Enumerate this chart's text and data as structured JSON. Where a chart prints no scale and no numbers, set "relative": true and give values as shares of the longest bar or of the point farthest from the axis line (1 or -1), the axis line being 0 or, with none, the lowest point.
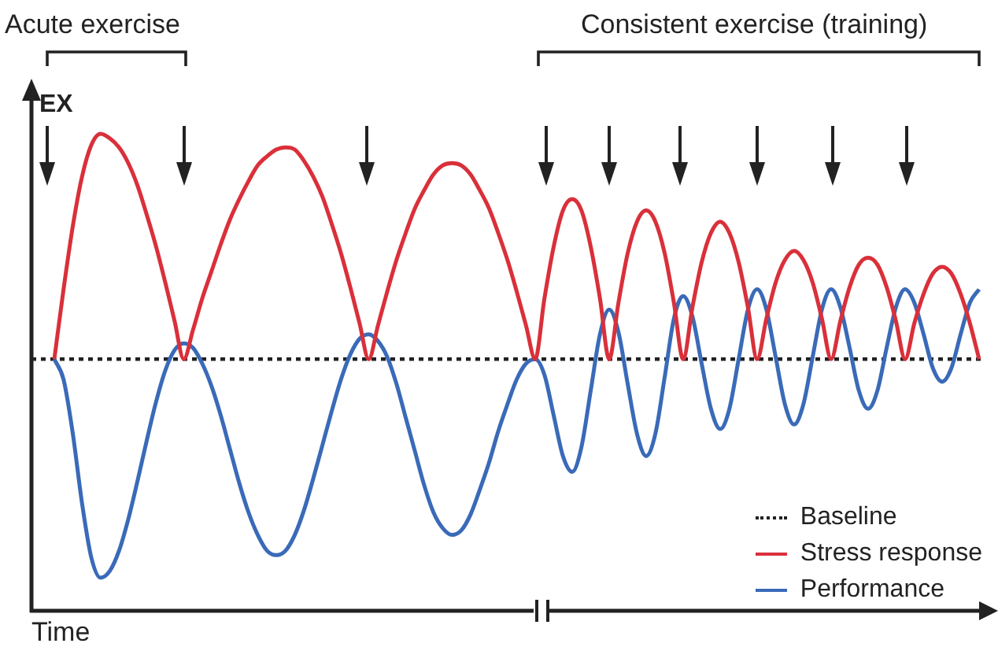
{
  "chart_data": {
    "type": "line",
    "relative": true,
    "xlabel": "Time",
    "ylabel": "EX",
    "annotations": [
      "Acute exercise",
      "Consistent exercise (training)"
    ],
    "categories": [
      null,
      null,
      null,
      null,
      null,
      null,
      null,
      null,
      null,
      null,
      null,
      null,
      null,
      null,
      null,
      null,
      null,
      null,
      null,
      null,
      null,
      null,
      null,
      null,
      null,
      null,
      null,
      null,
      null,
      null,
      null,
      null,
      null,
      null,
      null,
      null,
      null,
      null,
      null,
      null,
      null,
      null,
      null,
      null,
      null,
      null,
      null,
      null,
      null,
      null,
      null,
      null,
      null,
      null,
      null,
      null,
      null,
      null,
      null,
      null,
      null,
      null,
      null,
      null,
      null,
      null,
      null,
      null,
      null,
      null,
      null,
      null,
      null,
      null,
      null,
      null,
      null,
      null,
      null,
      null,
      null,
      null,
      null,
      null,
      null,
      null,
      null,
      null,
      null,
      null,
      null,
      null,
      null,
      null,
      null,
      null,
      null,
      null,
      null,
      null,
      null
    ],
    "series": [
      {
        "name": "Stress response",
        "color": "#d9303a",
        "values": [
          0,
          0.31,
          0.59,
          0.81,
          0.95,
          1,
          0.98,
          0.94,
          0.87,
          0.77,
          0.64,
          0.5,
          0.34,
          0.17,
          0,
          0.13,
          0.27,
          0.39,
          0.51,
          0.62,
          0.71,
          0.79,
          0.86,
          0.9,
          0.93,
          0.94,
          0.93,
          0.88,
          0.81,
          0.72,
          0.6,
          0.47,
          0.32,
          0.16,
          0,
          0.15,
          0.3,
          0.44,
          0.56,
          0.67,
          0.75,
          0.82,
          0.86,
          0.87,
          0.86,
          0.82,
          0.75,
          0.67,
          0.56,
          0.44,
          0.3,
          0.15,
          0,
          0.27,
          0.5,
          0.66,
          0.71,
          0.66,
          0.5,
          0.27,
          0,
          0.25,
          0.47,
          0.61,
          0.66,
          0.61,
          0.47,
          0.25,
          0,
          0.23,
          0.43,
          0.56,
          0.61,
          0.56,
          0.43,
          0.23,
          0,
          0.18,
          0.34,
          0.44,
          0.48,
          0.44,
          0.34,
          0.18,
          0,
          0.17,
          0.32,
          0.42,
          0.45,
          0.42,
          0.32,
          0.17,
          0,
          0.16,
          0.29,
          0.38,
          0.41,
          0.38,
          0.29,
          0.16,
          0
        ]
      },
      {
        "name": "Performance",
        "color": "#3a6ab8",
        "values": [
          0,
          -0.09,
          -0.33,
          -0.64,
          -0.88,
          -0.97,
          -0.94,
          -0.85,
          -0.71,
          -0.54,
          -0.36,
          -0.19,
          -0.05,
          0.04,
          0.07,
          0.05,
          -0.02,
          -0.12,
          -0.25,
          -0.4,
          -0.55,
          -0.68,
          -0.78,
          -0.85,
          -0.87,
          -0.85,
          -0.78,
          -0.67,
          -0.53,
          -0.38,
          -0.23,
          -0.09,
          0.02,
          0.09,
          0.11,
          0.08,
          0.01,
          -0.11,
          -0.26,
          -0.41,
          -0.56,
          -0.68,
          -0.75,
          -0.78,
          -0.76,
          -0.69,
          -0.58,
          -0.46,
          -0.32,
          -0.2,
          -0.09,
          -0.02,
          0,
          -0.07,
          -0.25,
          -0.43,
          -0.5,
          -0.39,
          -0.14,
          0.11,
          0.22,
          0.12,
          -0.11,
          -0.33,
          -0.43,
          -0.33,
          -0.08,
          0.18,
          0.28,
          0.19,
          -0.02,
          -0.22,
          -0.31,
          -0.22,
          0,
          0.22,
          0.31,
          0.22,
          0.01,
          -0.2,
          -0.29,
          -0.2,
          0.01,
          0.22,
          0.31,
          0.23,
          0.05,
          -0.14,
          -0.22,
          -0.14,
          0.05,
          0.23,
          0.31,
          0.25,
          0.11,
          -0.04,
          -0.1,
          -0.04,
          0.11,
          0.25,
          0.31
        ]
      }
    ],
    "ref_lines": [
      {
        "axis": "y",
        "value": 0,
        "label": "Baseline",
        "color": "#222222",
        "line_style": "dotted"
      }
    ],
    "legend": "bottom right",
    "marker": "none",
    "line_style": "solid"
  }
}
